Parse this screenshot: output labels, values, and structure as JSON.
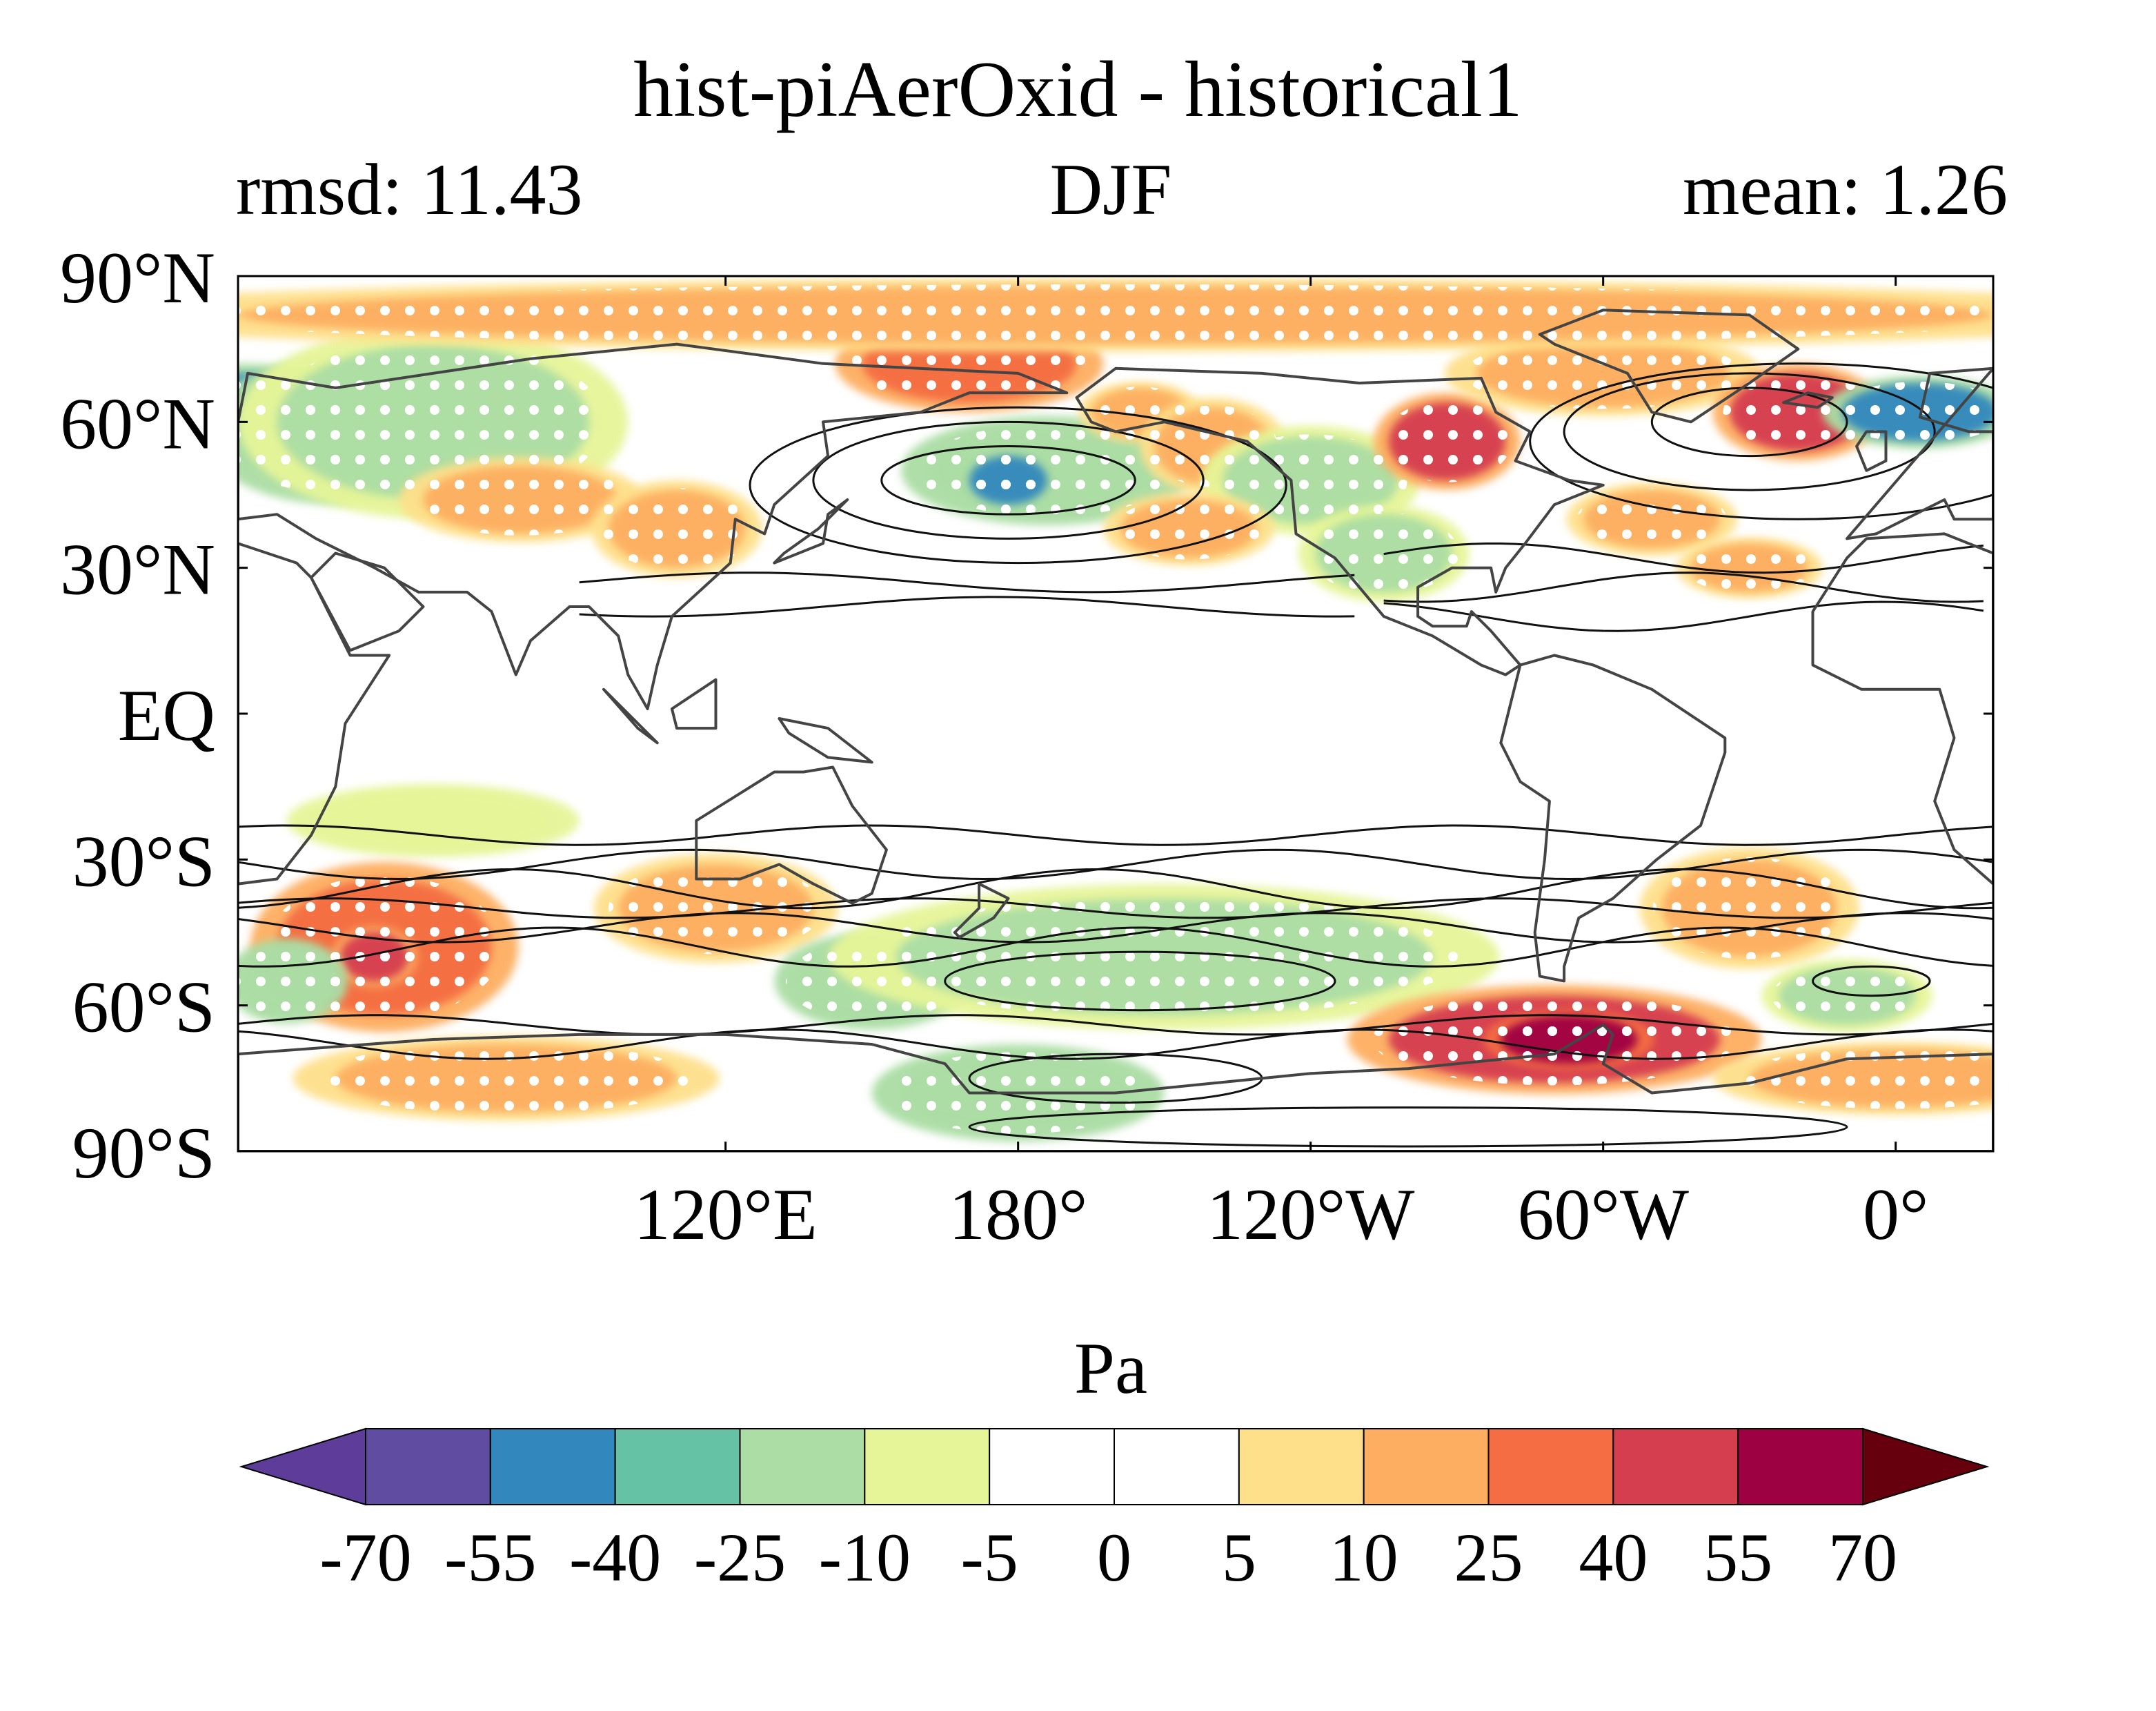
{
  "title": "hist-piAerOxid - historical1",
  "stats": {
    "left": "rmsd: 11.43",
    "center": "DJF",
    "right": "mean: 1.26"
  },
  "map": {
    "projection": "equirectangular",
    "lon_range": [
      20,
      380
    ],
    "lat_range": [
      -90,
      90
    ],
    "lat_ticks": [
      {
        "value": 90,
        "label": "90°N"
      },
      {
        "value": 60,
        "label": "60°N"
      },
      {
        "value": 30,
        "label": "30°N"
      },
      {
        "value": 0,
        "label": "EQ"
      },
      {
        "value": -30,
        "label": "30°S"
      },
      {
        "value": -60,
        "label": "60°S"
      },
      {
        "value": -90,
        "label": "90°S"
      }
    ],
    "lon_ticks": [
      {
        "value": 120,
        "label": "120°E"
      },
      {
        "value": 180,
        "label": "180°"
      },
      {
        "value": 240,
        "label": "120°W"
      },
      {
        "value": 300,
        "label": "60°W"
      },
      {
        "value": 360,
        "label": "0°"
      }
    ],
    "field_units": "Pa",
    "stippling": "white dots mark significant regions",
    "anomaly_regions": [
      {
        "lon": 22,
        "lat": 62,
        "rlon": 14,
        "rlat": 8,
        "value": -50
      },
      {
        "lon": 40,
        "lat": 58,
        "rlon": 22,
        "rlat": 12,
        "value": -25
      },
      {
        "lon": 60,
        "lat": 60,
        "rlon": 32,
        "rlat": 16,
        "value": -15
      },
      {
        "lon": 78,
        "lat": 44,
        "rlon": 20,
        "rlat": 7,
        "value": 15
      },
      {
        "lon": 110,
        "lat": 38,
        "rlon": 14,
        "rlat": 8,
        "value": 15
      },
      {
        "lon": 170,
        "lat": 72,
        "rlon": 22,
        "rlat": 8,
        "value": 35
      },
      {
        "lon": 186,
        "lat": 50,
        "rlon": 24,
        "rlat": 9,
        "value": -25
      },
      {
        "lon": 178,
        "lat": 48,
        "rlon": 8,
        "rlat": 5,
        "value": -45
      },
      {
        "lon": 205,
        "lat": 62,
        "rlon": 10,
        "rlat": 5,
        "value": 12
      },
      {
        "lon": 220,
        "lat": 55,
        "rlon": 12,
        "rlat": 8,
        "value": 15
      },
      {
        "lon": 240,
        "lat": 48,
        "rlon": 18,
        "rlat": 9,
        "value": -15
      },
      {
        "lon": 255,
        "lat": 33,
        "rlon": 14,
        "rlat": 8,
        "value": -12
      },
      {
        "lon": 268,
        "lat": 56,
        "rlon": 12,
        "rlat": 8,
        "value": 40
      },
      {
        "lon": 300,
        "lat": 70,
        "rlon": 26,
        "rlat": 7,
        "value": 15
      },
      {
        "lon": 340,
        "lat": 62,
        "rlon": 14,
        "rlat": 8,
        "value": 40
      },
      {
        "lon": 365,
        "lat": 62,
        "rlon": 16,
        "rlat": 6,
        "value": -45
      },
      {
        "lon": 310,
        "lat": 40,
        "rlon": 14,
        "rlat": 6,
        "value": 12
      },
      {
        "lon": 330,
        "lat": 30,
        "rlon": 12,
        "rlat": 5,
        "value": 12
      },
      {
        "lon": 215,
        "lat": 38,
        "rlon": 14,
        "rlat": 6,
        "value": 12
      },
      {
        "lon": 200,
        "lat": 82,
        "rlon": 180,
        "rlat": 6,
        "value": 15
      },
      {
        "lon": 60,
        "lat": -22,
        "rlon": 24,
        "rlat": 6,
        "value": -8
      },
      {
        "lon": 50,
        "lat": -48,
        "rlon": 22,
        "rlat": 14,
        "value": 25
      },
      {
        "lon": 48,
        "lat": -50,
        "rlon": 7,
        "rlat": 5,
        "value": 50
      },
      {
        "lon": 30,
        "lat": -55,
        "rlon": 10,
        "rlat": 7,
        "value": -25
      },
      {
        "lon": 118,
        "lat": -40,
        "rlon": 20,
        "rlat": 9,
        "value": 15
      },
      {
        "lon": 150,
        "lat": -55,
        "rlon": 16,
        "rlat": 8,
        "value": -25
      },
      {
        "lon": 210,
        "lat": -50,
        "rlon": 55,
        "rlat": 12,
        "value": -12
      },
      {
        "lon": 180,
        "lat": -78,
        "rlon": 24,
        "rlat": 8,
        "value": -25
      },
      {
        "lon": 290,
        "lat": -67,
        "rlon": 34,
        "rlat": 9,
        "value": 40
      },
      {
        "lon": 293,
        "lat": -67,
        "rlon": 14,
        "rlat": 5,
        "value": 58
      },
      {
        "lon": 330,
        "lat": -40,
        "rlon": 18,
        "rlat": 10,
        "value": 15
      },
      {
        "lon": 350,
        "lat": -58,
        "rlon": 14,
        "rlat": 6,
        "value": -15
      },
      {
        "lon": 360,
        "lat": -75,
        "rlon": 30,
        "rlat": 6,
        "value": 15
      },
      {
        "lon": 75,
        "lat": -75,
        "rlon": 35,
        "rlat": 7,
        "value": 15
      }
    ]
  },
  "colorbar": {
    "label": "Pa",
    "levels": [
      -70,
      -55,
      -40,
      -25,
      -10,
      -5,
      0,
      5,
      10,
      25,
      40,
      55,
      70
    ],
    "tick_labels": [
      "-70",
      "-55",
      "-40",
      "-25",
      "-10",
      "-5",
      "0",
      "5",
      "10",
      "25",
      "40",
      "55",
      "70"
    ],
    "colors": [
      "#5e3c99",
      "#604ca0",
      "#3288bd",
      "#66c2a5",
      "#abdda4",
      "#e6f598",
      "#ffffff",
      "#ffffff",
      "#fee08b",
      "#fdae61",
      "#f46d43",
      "#d53e4f",
      "#9e0142",
      "#67000d"
    ],
    "extend": "both"
  }
}
